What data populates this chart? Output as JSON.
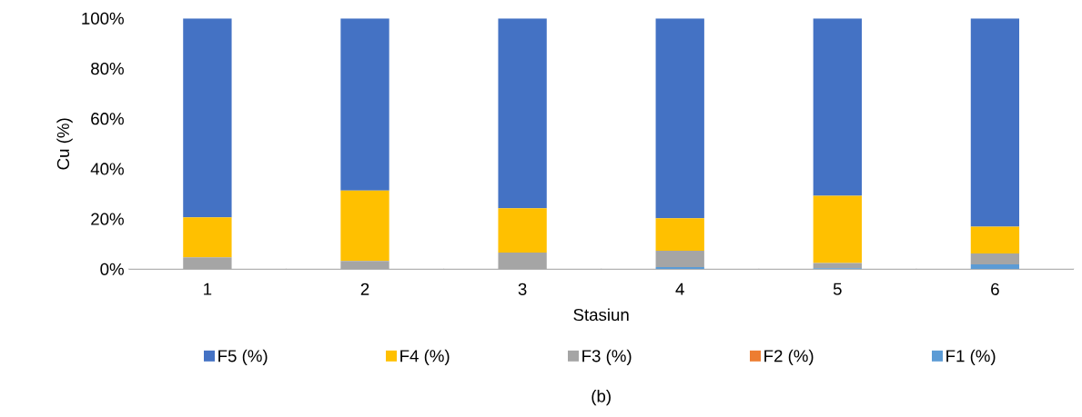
{
  "chart_data": {
    "type": "bar",
    "stacked": true,
    "xlabel": "Stasiun",
    "ylabel": "Cu (%)",
    "categories": [
      "1",
      "2",
      "3",
      "4",
      "5",
      "6"
    ],
    "series": [
      {
        "name": "F1 (%)",
        "color": "#5b9bd5",
        "values": [
          0,
          0,
          0,
          0.8,
          0.4,
          1.9
        ]
      },
      {
        "name": "F2 (%)",
        "color": "#ed7d31",
        "values": [
          0,
          0,
          0,
          0,
          0,
          0
        ]
      },
      {
        "name": "F3 (%)",
        "color": "#a5a5a5",
        "values": [
          4.7,
          3.3,
          6.6,
          6.6,
          2.1,
          4.4
        ]
      },
      {
        "name": "F4 (%)",
        "color": "#ffc000",
        "values": [
          16,
          28.1,
          17.7,
          12.9,
          26.8,
          10.7
        ]
      },
      {
        "name": "F5 (%)",
        "color": "#4472c4",
        "values": [
          79.3,
          68.6,
          75.7,
          79.7,
          70.7,
          83
        ]
      }
    ],
    "ylim": [
      0,
      100
    ],
    "yticks": [
      {
        "value": 0,
        "label": "0%"
      },
      {
        "value": 20,
        "label": "20%"
      },
      {
        "value": 40,
        "label": "40%"
      },
      {
        "value": 60,
        "label": "60%"
      },
      {
        "value": 80,
        "label": "80%"
      },
      {
        "value": 100,
        "label": "100%"
      }
    ],
    "grid": false,
    "legend": "bottom",
    "annotations": [
      "(b)"
    ]
  }
}
